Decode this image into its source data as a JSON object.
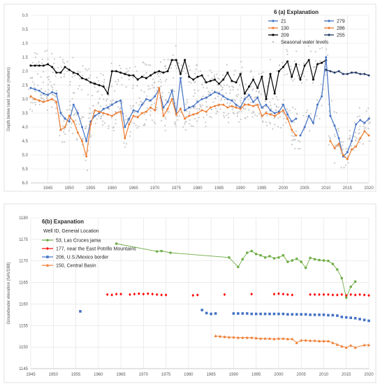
{
  "chart_data": [
    {
      "type": "line",
      "legend_title": "6 (a) Explanation",
      "xlabel": "",
      "ylabel": "Depth below land surface (meters)",
      "xlim": [
        1941,
        2020
      ],
      "ylim": [
        0.0,
        6.0
      ],
      "y_inverted": true,
      "y_ticks": [
        "0.0",
        "0.5",
        "1.0",
        "1.5",
        "2.0",
        "2.5",
        "3.0",
        "3.5",
        "4.0",
        "4.5",
        "5.0",
        "5.5",
        "6.0"
      ],
      "y_tick_values": [
        0,
        0.5,
        1,
        1.5,
        2,
        2.5,
        3,
        3.5,
        4,
        4.5,
        5,
        5.5,
        6
      ],
      "x_ticks": [
        "1945",
        "1950",
        "1955",
        "1960",
        "1965",
        "1970",
        "1975",
        "1980",
        "1985",
        "1990",
        "1995",
        "2000",
        "2005",
        "2010",
        "2015",
        "2020"
      ],
      "x_tick_values": [
        1945,
        1950,
        1955,
        1960,
        1965,
        1970,
        1975,
        1980,
        1985,
        1990,
        1995,
        2000,
        2005,
        2010,
        2015,
        2020
      ],
      "grid": true,
      "legend_position": "top-right",
      "series": [
        {
          "name": "21",
          "color": "#4472c4",
          "marker": "circle",
          "x": [
            1941,
            1942,
            1943,
            1944,
            1945,
            1946,
            1947,
            1948,
            1949,
            1950,
            1951,
            1952,
            1953,
            1954,
            1955,
            1956,
            1957,
            1958,
            1959,
            1960,
            1961,
            1962,
            1963,
            1964,
            1965,
            1966,
            1967,
            1968,
            1969,
            1970,
            1971,
            1972,
            1973,
            1974,
            1975,
            1976,
            1977,
            1978,
            1979,
            1980,
            1981,
            1982,
            1983,
            1984,
            1985,
            1986,
            1987,
            1988,
            1989,
            1990,
            1991,
            1992,
            1993,
            1994,
            1995,
            1996,
            1997,
            1998,
            1999,
            2000,
            2001,
            2002,
            2003
          ],
          "y": [
            2.6,
            2.65,
            2.7,
            2.8,
            2.85,
            2.75,
            2.8,
            3.5,
            3.7,
            3.8,
            3.2,
            3.5,
            4.0,
            4.5,
            3.8,
            3.6,
            3.5,
            3.35,
            3.3,
            3.2,
            3.1,
            3.05,
            4.0,
            3.7,
            3.4,
            3.45,
            3.2,
            3.0,
            3.05,
            2.9,
            2.65,
            3.3,
            3.1,
            2.7,
            3.5,
            2.25,
            3.4,
            3.3,
            3.25,
            3.1,
            3.0,
            2.95,
            2.85,
            2.75,
            2.8,
            2.9,
            3.0,
            3.05,
            3.2,
            3.3,
            3.0,
            2.85,
            3.1,
            2.95,
            3.3,
            3.2,
            3.4,
            3.5,
            3.45,
            3.2,
            3.55,
            3.8,
            3.7
          ]
        },
        {
          "name": "130",
          "color": "#ed7d31",
          "marker": "circle",
          "x": [
            1941,
            1942,
            1943,
            1944,
            1945,
            1946,
            1947,
            1948,
            1949,
            1950,
            1951,
            1952,
            1953,
            1954,
            1955,
            1956,
            1957,
            1958,
            1959,
            1960,
            1961,
            1962,
            1963,
            1964,
            1965,
            1966,
            1967,
            1968,
            1969,
            1970,
            1971,
            1972,
            1973,
            1974,
            1975,
            1976,
            1977,
            1978,
            1979,
            1980,
            1981,
            1982,
            1983,
            1984,
            1985,
            1986,
            1987,
            1988,
            1989,
            1990,
            1991,
            1992,
            1993,
            1994,
            1995,
            1996,
            1997,
            1998,
            1999,
            2000,
            2001,
            2002,
            2003
          ],
          "y": [
            2.9,
            3.0,
            3.05,
            3.1,
            3.05,
            3.0,
            3.1,
            4.1,
            4.0,
            3.6,
            3.8,
            4.2,
            4.5,
            5.05,
            3.9,
            3.4,
            3.45,
            3.5,
            3.55,
            3.6,
            3.5,
            3.45,
            4.4,
            3.9,
            3.6,
            3.65,
            3.5,
            3.45,
            3.3,
            3.4,
            2.6,
            3.6,
            3.35,
            3.0,
            3.55,
            3.35,
            3.7,
            3.6,
            3.55,
            3.5,
            3.4,
            3.45,
            3.3,
            3.25,
            3.2,
            3.2,
            3.3,
            3.25,
            3.3,
            3.35,
            3.2,
            3.2,
            3.25,
            3.2,
            3.6,
            3.5,
            3.55,
            3.6,
            3.5,
            3.4,
            3.7,
            4.1,
            4.3
          ]
        },
        {
          "name": "209",
          "color": "#000000",
          "marker": "circle",
          "x": [
            1941,
            1942,
            1943,
            1944,
            1945,
            1946,
            1947,
            1948,
            1949,
            1950,
            1951,
            1952,
            1953,
            1954,
            1955,
            1956,
            1957,
            1958,
            1959,
            1960,
            1961,
            1962,
            1963,
            1964,
            1965,
            1966,
            1967,
            1968,
            1969,
            1970,
            1971,
            1972,
            1973,
            1974,
            1975,
            1976,
            1977,
            1978,
            1979,
            1980,
            1981,
            1982,
            1983,
            1984,
            1985,
            1986,
            1987,
            1988,
            1989,
            1990,
            1991,
            1992,
            1993,
            1994,
            1995,
            1996,
            1997,
            1998,
            1999,
            2000,
            2001,
            2002,
            2003,
            2004,
            2005,
            2006,
            2007,
            2008,
            2009,
            2010
          ],
          "y": [
            1.8,
            1.8,
            1.8,
            1.8,
            1.75,
            1.85,
            2.05,
            2.05,
            1.85,
            1.95,
            2.05,
            2.1,
            2.25,
            2.3,
            2.4,
            2.45,
            2.5,
            2.55,
            2.8,
            2.0,
            2.0,
            2.05,
            2.1,
            2.15,
            2.15,
            2.3,
            2.2,
            2.25,
            2.15,
            2.05,
            2.0,
            2.05,
            2.0,
            1.6,
            1.6,
            2.1,
            1.6,
            2.2,
            2.3,
            2.2,
            2.15,
            2.4,
            2.35,
            2.3,
            2.45,
            2.3,
            2.05,
            2.35,
            2.4,
            2.1,
            2.8,
            2.55,
            2.3,
            2.6,
            2.2,
            3.0,
            2.1,
            2.8,
            2.0,
            1.85,
            1.65,
            2.2,
            1.75,
            2.3,
            1.8,
            1.6,
            2.3,
            1.75,
            1.7,
            1.6
          ]
        },
        {
          "name": "279",
          "color": "#4472c4",
          "marker": "circle",
          "x": [
            2004,
            2005,
            2006,
            2007,
            2008,
            2009,
            2010,
            2011,
            2012,
            2013,
            2014,
            2015,
            2016,
            2017,
            2018,
            2019,
            2020
          ],
          "y": [
            4.3,
            4.0,
            3.6,
            3.85,
            3.2,
            2.9,
            1.5,
            3.6,
            3.95,
            4.4,
            5.05,
            4.9,
            4.5,
            3.9,
            3.75,
            3.85,
            3.7
          ]
        },
        {
          "name": "286",
          "color": "#ed7d31",
          "marker": "circle",
          "x": [
            2011,
            2012,
            2013,
            2014,
            2015,
            2016,
            2017,
            2018,
            2019,
            2020
          ],
          "y": [
            4.5,
            4.75,
            4.6,
            5.0,
            5.15,
            4.8,
            4.7,
            4.4,
            4.15,
            4.3
          ]
        },
        {
          "name": "255",
          "color": "#1f3864",
          "marker": "circle",
          "x": [
            2010,
            2011,
            2012,
            2013,
            2014,
            2015,
            2016,
            2017,
            2018,
            2019,
            2020
          ],
          "y": [
            1.95,
            2.0,
            2.05,
            2.0,
            2.1,
            2.1,
            2.05,
            2.05,
            2.1,
            2.1,
            2.15
          ]
        },
        {
          "name": "Seasonal water levels",
          "color": "#bfbfbf",
          "marker": "dot",
          "x": [],
          "y": []
        }
      ]
    },
    {
      "type": "scatter",
      "legend_title": "6(b) Expanation",
      "legend_subtitle": "Well ID, General Location",
      "xlabel": "",
      "ylabel": "Groundwater elevation (NAVD88)",
      "xlim": [
        1945,
        2020
      ],
      "ylim": [
        1145,
        1180
      ],
      "y_ticks": [
        "1145",
        "1150",
        "1155",
        "1160",
        "1165",
        "1170",
        "1175",
        "1180"
      ],
      "y_tick_values": [
        1145,
        1150,
        1155,
        1160,
        1165,
        1170,
        1175,
        1180
      ],
      "x_ticks": [
        "1945",
        "1950",
        "1955",
        "1960",
        "1965",
        "1970",
        "1975",
        "1980",
        "1985",
        "1990",
        "1995",
        "2000",
        "2005",
        "2010",
        "2015",
        "2020"
      ],
      "x_tick_values": [
        1945,
        1950,
        1955,
        1960,
        1965,
        1970,
        1975,
        1980,
        1985,
        1990,
        1995,
        2000,
        2005,
        2010,
        2015,
        2020
      ],
      "grid": true,
      "legend_position": "top-left",
      "series": [
        {
          "name": "53, Las Cruces jama",
          "color": "#70ad47",
          "marker": "circle",
          "connected": true,
          "x": [
            1964,
            1973,
            1974,
            1976,
            1989,
            1991,
            1992,
            1993,
            1994,
            1995,
            1996,
            1997,
            1998,
            1999,
            2000,
            2001,
            2002,
            2003,
            2004,
            2005,
            2006,
            2007,
            2008,
            2009,
            2010,
            2011,
            2012,
            2013,
            2014,
            2015,
            2016,
            2017
          ],
          "y": [
            1174,
            1172.2,
            1172.3,
            1171.9,
            1170.8,
            1168.6,
            1170.4,
            1171.9,
            1172.3,
            1171.6,
            1171.3,
            1170.8,
            1171.1,
            1170.6,
            1170.8,
            1171.3,
            1169.8,
            1170.1,
            1170.5,
            1169.8,
            1168.4,
            1170.7,
            1170.4,
            1170.2,
            1170.1,
            1170,
            1169.3,
            1168,
            1166,
            1161.5,
            1164,
            1165.2
          ]
        },
        {
          "name": "177, near the East Potrillo Mountains",
          "color": "#ff0000",
          "marker": "diamond",
          "connected": false,
          "x": [
            1962,
            1963,
            1964,
            1965,
            1967,
            1968,
            1969,
            1970,
            1971,
            1972,
            1973,
            1974,
            1975,
            1981,
            1982,
            1988,
            1994,
            1999,
            2000,
            2001,
            2002,
            2003,
            2007,
            2008,
            2009,
            2010,
            2011,
            2012,
            2013,
            2014,
            2015,
            2016,
            2017,
            2018,
            2019,
            2020
          ],
          "y": [
            1162.2,
            1162.1,
            1162.3,
            1162.3,
            1162.2,
            1162.3,
            1162.4,
            1162.3,
            1162.4,
            1162.3,
            1162.2,
            1162.1,
            1162.1,
            1162,
            1162.1,
            1162.2,
            1162.3,
            1162.3,
            1162.4,
            1162.3,
            1162.2,
            1162.1,
            1162.2,
            1162.2,
            1162.2,
            1162.2,
            1162.2,
            1162.1,
            1162.1,
            1162.2,
            1162,
            1162.2,
            1162.1,
            1162.2,
            1162.1,
            1162
          ]
        },
        {
          "name": "206, U.S./Mexico border",
          "color": "#4472c4",
          "marker": "square",
          "connected": false,
          "x": [
            1956,
            1983,
            1984,
            1985,
            1986,
            1990,
            1991,
            1992,
            1993,
            1994,
            1995,
            1996,
            1997,
            1998,
            1999,
            2000,
            2001,
            2002,
            2003,
            2004,
            2005,
            2006,
            2007,
            2008,
            2009,
            2010,
            2011,
            2012,
            2013,
            2014,
            2015,
            2016,
            2017,
            2018,
            2019,
            2020
          ],
          "y": [
            1158.3,
            1158.6,
            1157.9,
            1157.7,
            1157.8,
            1157.8,
            1157.8,
            1157.8,
            1157.8,
            1157.7,
            1157.7,
            1157.7,
            1157.7,
            1157.7,
            1157.7,
            1157.7,
            1157.7,
            1157.6,
            1157.6,
            1157.6,
            1157.6,
            1157.6,
            1157.5,
            1157.5,
            1157.5,
            1157.5,
            1157.4,
            1157.4,
            1157.3,
            1157,
            1156.9,
            1156.8,
            1156.7,
            1156.5,
            1156.3,
            1156.1
          ]
        },
        {
          "name": "150, Central Basin",
          "color": "#ed7d31",
          "marker": "triangle",
          "connected": true,
          "x": [
            1986,
            1987,
            1988,
            1989,
            1990,
            1991,
            1992,
            1993,
            1994,
            1995,
            1996,
            1997,
            1998,
            1999,
            2000,
            2001,
            2002,
            2003,
            2004,
            2005,
            2006,
            2007,
            2008,
            2009,
            2010,
            2011,
            2012,
            2013,
            2014,
            2015,
            2016,
            2017,
            2019,
            2020
          ],
          "y": [
            1152.6,
            1152.5,
            1152.4,
            1152.3,
            1152.3,
            1152.2,
            1152.2,
            1152.2,
            1152.2,
            1152.1,
            1152,
            1152,
            1152,
            1151.9,
            1152,
            1152,
            1151.9,
            1151.9,
            1151,
            1151.6,
            1151.6,
            1151.5,
            1151.5,
            1151.4,
            1151.4,
            1151.4,
            1151,
            1150.6,
            1150.2,
            1149.9,
            1150.4,
            1149.9,
            1150.5,
            1150.5
          ]
        }
      ]
    }
  ]
}
